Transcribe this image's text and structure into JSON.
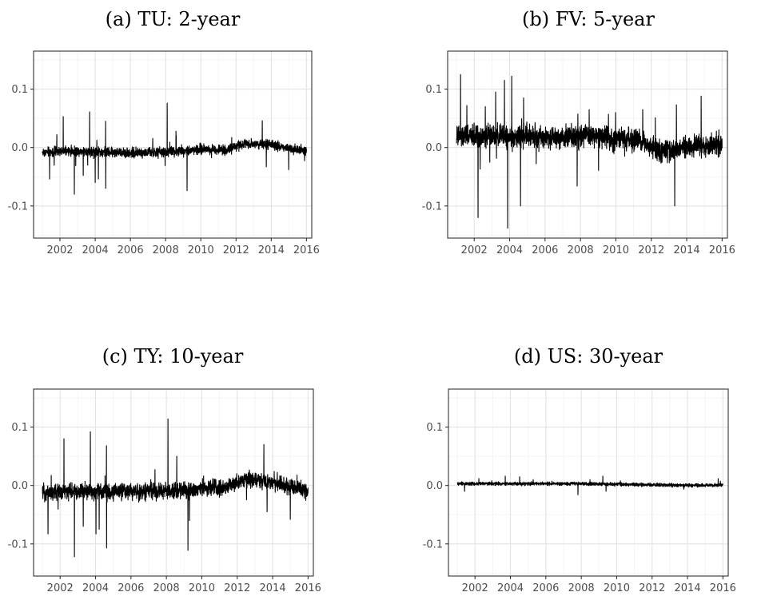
{
  "figure": {
    "panels": [
      {
        "label": "(a) TU: 2-year"
      },
      {
        "label": "(b) FV: 5-year"
      },
      {
        "label": "(c) TY: 10-year"
      },
      {
        "label": "(d) US: 30-year"
      }
    ]
  },
  "chart_data": [
    {
      "type": "line",
      "title": "(a) TU: 2-year",
      "xlabel": "",
      "ylabel": "",
      "x_ticks": [
        "2002",
        "2004",
        "2006",
        "2008",
        "2010",
        "2012",
        "2014",
        "2016"
      ],
      "y_ticks": [
        "-0.1",
        "0.0",
        "0.1"
      ],
      "xlim": [
        2000.5,
        2016.3
      ],
      "ylim": [
        -0.155,
        0.165
      ],
      "grid": true,
      "legend": "none",
      "line_color": "#000000",
      "series": [
        {
          "base": [
            [
              2001.0,
              -0.008
            ],
            [
              2003.0,
              -0.006
            ],
            [
              2006.0,
              -0.009
            ],
            [
              2008.0,
              -0.008
            ],
            [
              2010.0,
              -0.003
            ],
            [
              2011.5,
              -0.004
            ],
            [
              2012.5,
              0.008
            ],
            [
              2014.0,
              0.004
            ],
            [
              2016.0,
              -0.006
            ]
          ],
          "noise_amplitude": 0.012,
          "spikes": [
            [
              2001.4,
              -0.054
            ],
            [
              2001.8,
              0.022
            ],
            [
              2002.2,
              0.053
            ],
            [
              2002.8,
              -0.08
            ],
            [
              2003.3,
              -0.048
            ],
            [
              2003.7,
              0.061
            ],
            [
              2004.0,
              -0.06
            ],
            [
              2004.2,
              -0.054
            ],
            [
              2004.6,
              0.045
            ],
            [
              2004.6,
              -0.07
            ],
            [
              2008.1,
              0.076
            ],
            [
              2008.6,
              0.028
            ],
            [
              2009.2,
              -0.074
            ],
            [
              2013.5,
              0.046
            ],
            [
              2013.7,
              -0.033
            ],
            [
              2015.0,
              -0.038
            ]
          ]
        }
      ]
    },
    {
      "type": "line",
      "title": "(b) FV: 5-year",
      "xlabel": "",
      "ylabel": "",
      "x_ticks": [
        "2002",
        "2004",
        "2006",
        "2008",
        "2010",
        "2012",
        "2014",
        "2016"
      ],
      "y_ticks": [
        "-0.1",
        "0.0",
        "0.1"
      ],
      "xlim": [
        2000.5,
        2016.3
      ],
      "ylim": [
        -0.155,
        0.165
      ],
      "grid": true,
      "legend": "none",
      "line_color": "#000000",
      "series": [
        {
          "base": [
            [
              2001.0,
              0.018
            ],
            [
              2003.0,
              0.02
            ],
            [
              2006.0,
              0.018
            ],
            [
              2008.5,
              0.022
            ],
            [
              2010.0,
              0.015
            ],
            [
              2011.5,
              0.01
            ],
            [
              2012.5,
              -0.008
            ],
            [
              2014.0,
              0.0
            ],
            [
              2016.0,
              0.005
            ]
          ],
          "noise_amplitude": 0.028,
          "spikes": [
            [
              2001.2,
              0.125
            ],
            [
              2001.6,
              0.072
            ],
            [
              2002.2,
              -0.12
            ],
            [
              2002.6,
              0.07
            ],
            [
              2003.2,
              0.095
            ],
            [
              2003.7,
              0.115
            ],
            [
              2003.9,
              -0.138
            ],
            [
              2004.1,
              0.122
            ],
            [
              2004.6,
              -0.1
            ],
            [
              2004.8,
              0.085
            ],
            [
              2007.8,
              -0.066
            ],
            [
              2008.5,
              0.065
            ],
            [
              2010.0,
              0.06
            ],
            [
              2011.5,
              0.065
            ],
            [
              2013.3,
              -0.1
            ],
            [
              2013.4,
              0.073
            ],
            [
              2014.8,
              0.088
            ]
          ]
        }
      ]
    },
    {
      "type": "line",
      "title": "(c) TY: 10-year",
      "xlabel": "",
      "ylabel": "",
      "x_ticks": [
        "2002",
        "2004",
        "2006",
        "2008",
        "2010",
        "2012",
        "2014",
        "2016"
      ],
      "y_ticks": [
        "-0.1",
        "0.0",
        "0.1"
      ],
      "xlim": [
        2000.5,
        2016.3
      ],
      "ylim": [
        -0.155,
        0.165
      ],
      "grid": true,
      "legend": "none",
      "line_color": "#000000",
      "series": [
        {
          "base": [
            [
              2001.0,
              -0.012
            ],
            [
              2003.0,
              -0.01
            ],
            [
              2006.0,
              -0.01
            ],
            [
              2008.0,
              -0.01
            ],
            [
              2010.0,
              -0.006
            ],
            [
              2011.5,
              -0.002
            ],
            [
              2012.5,
              0.01
            ],
            [
              2014.0,
              0.005
            ],
            [
              2016.0,
              -0.008
            ]
          ],
          "noise_amplitude": 0.02,
          "spikes": [
            [
              2001.3,
              -0.083
            ],
            [
              2002.2,
              0.08
            ],
            [
              2002.8,
              -0.122
            ],
            [
              2003.3,
              -0.07
            ],
            [
              2003.7,
              0.092
            ],
            [
              2004.0,
              -0.083
            ],
            [
              2004.2,
              -0.075
            ],
            [
              2004.6,
              0.068
            ],
            [
              2004.6,
              -0.107
            ],
            [
              2008.1,
              0.114
            ],
            [
              2008.6,
              0.05
            ],
            [
              2009.2,
              -0.111
            ],
            [
              2009.3,
              -0.06
            ],
            [
              2013.5,
              0.07
            ],
            [
              2013.7,
              -0.045
            ],
            [
              2015.0,
              -0.058
            ]
          ]
        }
      ]
    },
    {
      "type": "line",
      "title": "(d) US: 30-year",
      "xlabel": "",
      "ylabel": "",
      "x_ticks": [
        "2002",
        "2004",
        "2006",
        "2008",
        "2010",
        "2012",
        "2014",
        "2016"
      ],
      "y_ticks": [
        "-0.1",
        "0.0",
        "0.1"
      ],
      "xlim": [
        2000.5,
        2016.3
      ],
      "ylim": [
        -0.155,
        0.165
      ],
      "grid": true,
      "legend": "none",
      "line_color": "#000000",
      "series": [
        {
          "base": [
            [
              2001.0,
              0.003
            ],
            [
              2004.0,
              0.003
            ],
            [
              2008.0,
              0.003
            ],
            [
              2010.0,
              0.002
            ],
            [
              2012.0,
              0.001
            ],
            [
              2014.0,
              0.0
            ],
            [
              2016.0,
              0.001
            ]
          ],
          "noise_amplitude": 0.004,
          "spikes": [
            [
              2001.4,
              -0.01
            ],
            [
              2002.2,
              0.012
            ],
            [
              2003.7,
              0.016
            ],
            [
              2004.5,
              0.015
            ],
            [
              2005.3,
              0.01
            ],
            [
              2007.8,
              -0.016
            ],
            [
              2008.5,
              0.01
            ],
            [
              2009.2,
              0.016
            ],
            [
              2009.4,
              -0.01
            ],
            [
              2010.2,
              0.008
            ]
          ]
        }
      ]
    }
  ]
}
